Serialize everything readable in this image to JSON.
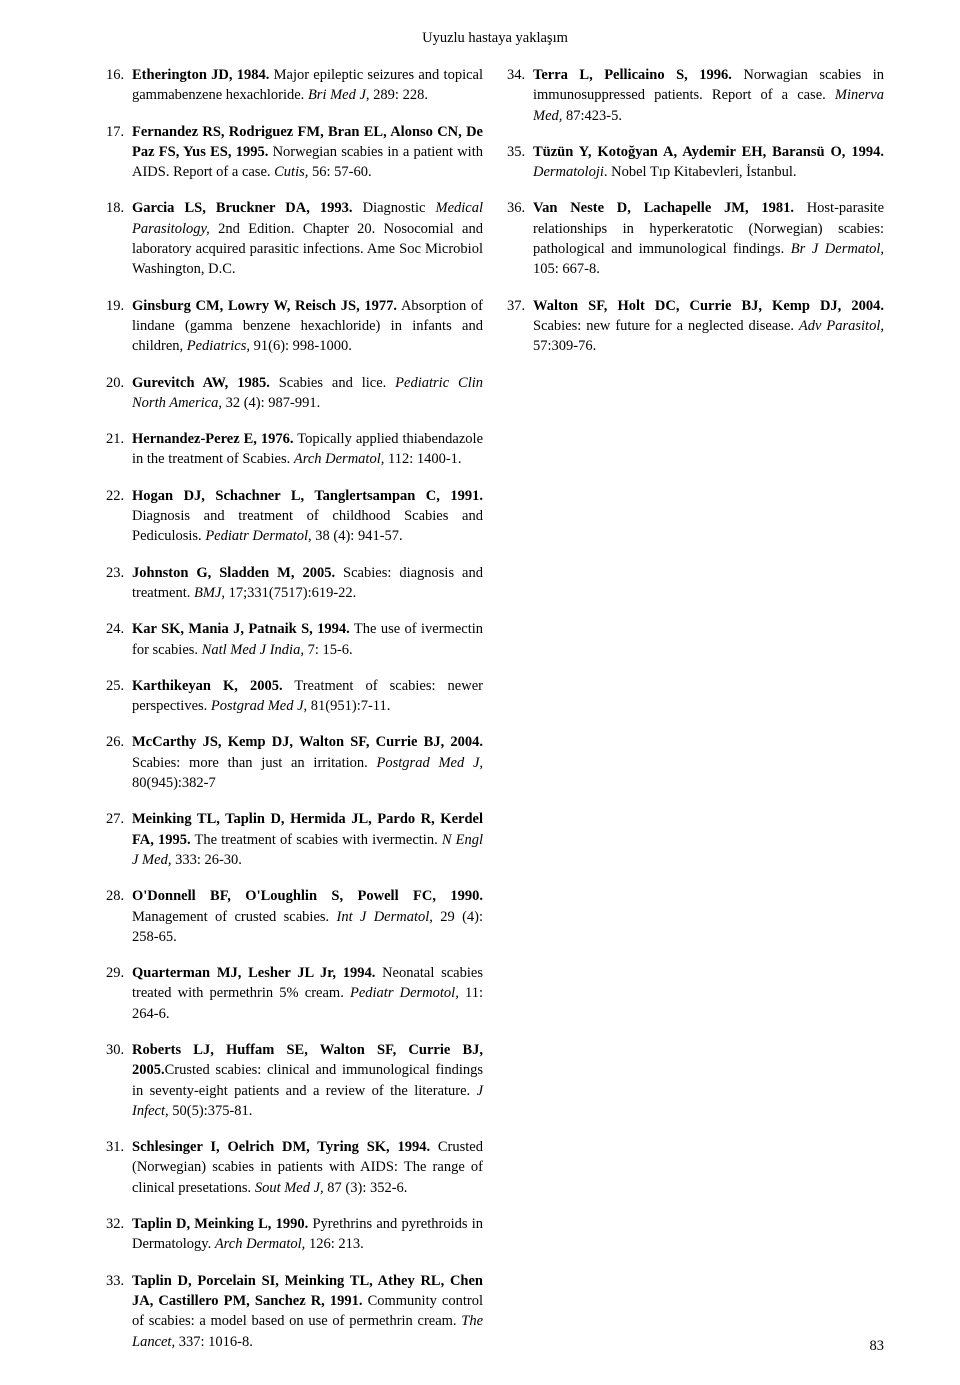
{
  "header": {
    "title": "Uyuzlu hastaya yaklaşım"
  },
  "page_number": "83",
  "colors": {
    "text": "#000000",
    "background": "#ffffff"
  },
  "typography": {
    "font_family": "Times New Roman",
    "body_size_pt": 11,
    "line_height": 1.4
  },
  "left_refs": [
    {
      "n": "16.",
      "b": "Etherington JD, 1984.",
      "t": " Major epileptic seizures and topical gammabenzene hexachloride. ",
      "i": "Bri Med J",
      "r": ", 289: 228."
    },
    {
      "n": "17.",
      "b": "Fernandez RS, Rodriguez FM, Bran EL, Alonso CN, De Paz FS, Yus ES, 1995.",
      "t": " Norwegian scabies in a patient with AIDS. Report of a case. ",
      "i": "Cutis,",
      "r": " 56: 57-60."
    },
    {
      "n": "18.",
      "b": "Garcia LS, Bruckner DA, 1993.",
      "t": " Diagnostic ",
      "i": "Medical Parasitology,",
      "r": " 2nd Edition. Chapter 20. Nosocomial and laboratory acquired parasitic infections. Ame Soc Microbiol Washington, D.C."
    },
    {
      "n": "19.",
      "b": "Ginsburg CM, Lowry W, Reisch JS, 1977.",
      "t": " Absorption of lindane (gamma benzene hexachloride) in infants and children, ",
      "i": "Pediatrics,",
      "r": " 91(6): 998-1000."
    },
    {
      "n": "20.",
      "b": "Gurevitch AW, 1985.",
      "t": " Scabies and lice. ",
      "i": "Pediatric Clin North America,",
      "r": " 32 (4): 987-991."
    },
    {
      "n": "21.",
      "b": "Hernandez-Perez E, 1976.",
      "t": " Topically applied thiabendazole in the treatment of Scabies. ",
      "i": "Arch Dermatol,",
      "r": " 112: 1400-1."
    },
    {
      "n": "22.",
      "b": "Hogan DJ, Schachner L, Tanglertsampan C, 1991.",
      "t": " Diagnosis and treatment of childhood Scabies and Pediculosis. ",
      "i": "Pediatr Dermatol,",
      "r": " 38 (4): 941-57."
    },
    {
      "n": "23.",
      "b": "Johnston G, Sladden M, 2005.",
      "t": " Scabies: diagnosis and treatment. ",
      "i": "BMJ",
      "r": ", 17;331(7517):619-22."
    },
    {
      "n": "24.",
      "b": "Kar SK, Mania J, Patnaik S, 1994.",
      "t": " The use of ivermectin for scabies.    ",
      "i": "Natl Med J India,",
      "r": " 7: 15-6."
    },
    {
      "n": "25.",
      "b": "Karthikeyan K, 2005.",
      "t": " Treatment of scabies: newer perspectives. ",
      "i": "Postgrad Med J",
      "r": ", 81(951):7-11."
    },
    {
      "n": "26.",
      "b": "McCarthy JS, Kemp DJ, Walton SF, Currie BJ, 2004.",
      "t": " Scabies: more than just an irritation. ",
      "i": "Postgrad Med J,",
      "r": " 80(945):382-7"
    },
    {
      "n": "27.",
      "b": "Meinking TL, Taplin D, Hermida JL, Pardo R, Kerdel FA, 1995.",
      "t": " The treatment of scabies with ivermectin. ",
      "i": "N Engl J Med,",
      "r": " 333: 26-30."
    },
    {
      "n": "28.",
      "b": "O'Donnell BF, O'Loughlin S, Powell FC, 1990.",
      "t": " Management of crusted scabies. ",
      "i": "Int J Dermatol,",
      "r": " 29 (4): 258-65."
    },
    {
      "n": "29.",
      "b": "Quarterman MJ, Lesher JL Jr, 1994.",
      "t": " Neonatal scabies treated with permethrin 5% cream. ",
      "i": "Pediatr Dermotol,",
      "r": " 11: 264-6."
    },
    {
      "n": "30.",
      "b": "Roberts LJ, Huffam SE, Walton SF, Currie BJ, 2005.",
      "t": "Crusted scabies: clinical and immunological findings in seventy-eight patients and a review of the literature. ",
      "i": "J Infect,",
      "r": " 50(5):375-81."
    },
    {
      "n": "31.",
      "b": "Schlesinger I, Oelrich DM, Tyring SK, 1994.",
      "t": " Crusted (Norwegian) scabies in patients with AIDS: The range of clinical presetations. ",
      "i": "Sout Med J,",
      "r": " 87 (3): 352-6."
    },
    {
      "n": "32.",
      "b": "Taplin D, Meinking L, 1990.",
      "t": " Pyrethrins and pyrethroids in Dermatology. ",
      "i": "Arch Dermatol,",
      "r": " 126: 213."
    },
    {
      "n": "33.",
      "b": "Taplin D, Porcelain SI, Meinking TL, Athey RL, Chen JA, Castillero PM, Sanchez R, 1991.",
      "t": " Community control of scabies: a model based on use of permethrin cream. ",
      "i": "The Lancet,",
      "r": " 337: 1016-8."
    }
  ],
  "right_refs": [
    {
      "n": "34.",
      "b": "Terra L, Pellicaino S, 1996.",
      "t": " Norwagian scabies in immunosuppressed patients. Report of a case. ",
      "i": "Minerva Med,",
      "r": " 87:423-5."
    },
    {
      "n": "35.",
      "b": "Tüzün Y, Kotoğyan A, Aydemir EH, Baransü O, 1994.",
      "t": " ",
      "i": "Dermatoloji",
      "r": ". Nobel Tıp Kitabevleri, İstanbul."
    },
    {
      "n": "36.",
      "b": "Van Neste D, Lachapelle JM, 1981.",
      "t": " Host-parasite relationships in hyperkeratotic (Norwegian) scabies: pathological and immunological findings. ",
      "i": "Br J Dermatol,",
      "r": " 105: 667-8."
    },
    {
      "n": "37.",
      "b": "Walton SF, Holt DC, Currie BJ, Kemp DJ, 2004.",
      "t": " Scabies: new future for a neglected disease. ",
      "i": "Adv Parasitol,",
      "r": " 57:309-76."
    }
  ]
}
